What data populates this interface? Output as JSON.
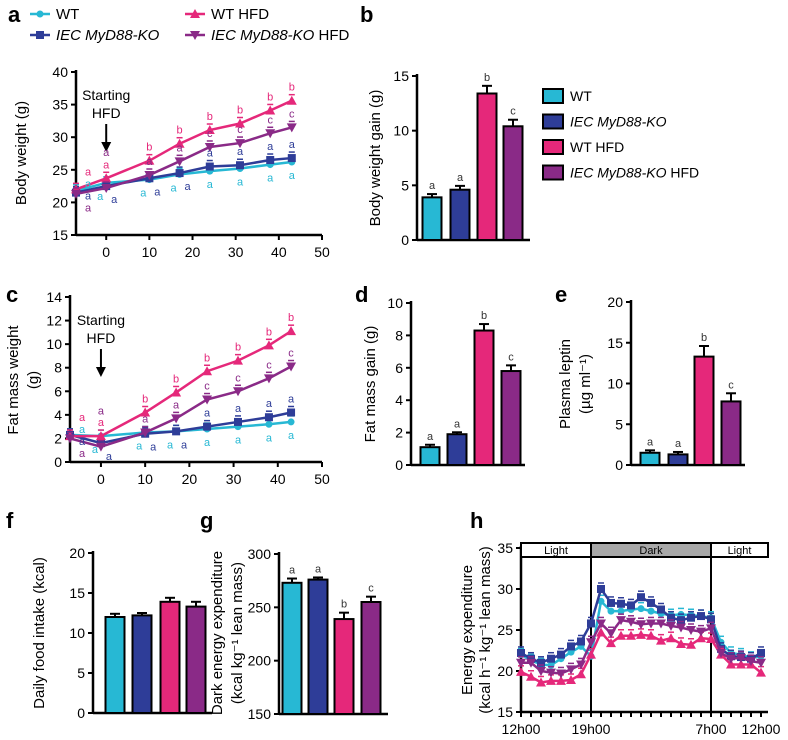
{
  "colors": {
    "WT": "#27B8D4",
    "KO": "#2E3D98",
    "WT_HFD": "#E5287A",
    "KO_HFD": "#8A2A87"
  },
  "groups": [
    {
      "key": "WT",
      "italic": "",
      "plain": "WT",
      "marker": "circle"
    },
    {
      "key": "KO",
      "italic": "IEC MyD88-KO",
      "plain": "",
      "marker": "square"
    },
    {
      "key": "WT_HFD",
      "italic": "",
      "plain": "WT HFD",
      "marker": "triangle-up"
    },
    {
      "key": "KO_HFD",
      "italic": "IEC MyD88-KO",
      "plain": " HFD",
      "marker": "triangle-down"
    }
  ],
  "chart_data": [
    {
      "id": "a",
      "panel_label": "a",
      "type": "line",
      "ylabel": [
        "Body weight (g)"
      ],
      "ylim": [
        15,
        40
      ],
      "yticks": [
        15,
        20,
        25,
        30,
        35,
        40
      ],
      "xlim": [
        -7,
        50
      ],
      "xticks": [
        0,
        10,
        20,
        30,
        40,
        50
      ],
      "annotation": [
        "Starting",
        "HFD"
      ],
      "x": [
        -7,
        0,
        10,
        17,
        24,
        31,
        38,
        43
      ],
      "series": [
        {
          "key": "WT",
          "values": [
            21.8,
            23.0,
            23.5,
            24.3,
            24.8,
            25.2,
            25.8,
            26.2
          ],
          "letters": [
            "a",
            "a",
            "a",
            "a",
            "a",
            "a",
            "a",
            "a"
          ]
        },
        {
          "key": "KO",
          "values": [
            21.5,
            22.5,
            23.7,
            24.5,
            25.5,
            25.7,
            26.5,
            26.8
          ],
          "letters": [
            "a",
            "a",
            "a",
            "a",
            "a",
            "a",
            "a",
            "a"
          ]
        },
        {
          "key": "WT_HFD",
          "values": [
            22.0,
            23.7,
            26.4,
            29.0,
            31.1,
            32.1,
            34.1,
            35.6
          ],
          "letters": [
            "a",
            "a",
            "b",
            "b",
            "b",
            "b",
            "b",
            "b"
          ]
        },
        {
          "key": "KO_HFD",
          "values": [
            21.3,
            22.2,
            24.2,
            26.3,
            28.5,
            29.1,
            30.6,
            31.5
          ],
          "letters": [
            "a",
            "a",
            "a",
            "a",
            "c",
            "c",
            "c",
            "c"
          ]
        }
      ]
    },
    {
      "id": "b",
      "panel_label": "b",
      "type": "bar",
      "ylabel": [
        "Body weight gain (g)"
      ],
      "ylim": [
        0,
        15
      ],
      "yticks": [
        0,
        5,
        10,
        15
      ],
      "values": [
        3.9,
        4.6,
        13.4,
        10.4
      ],
      "errors": [
        0.3,
        0.35,
        0.7,
        0.6
      ],
      "letters": [
        "a",
        "a",
        "b",
        "c"
      ],
      "legend": true
    },
    {
      "id": "c",
      "panel_label": "c",
      "type": "line",
      "ylabel": [
        "Fat mass weight",
        "(g)"
      ],
      "ylim": [
        0,
        14
      ],
      "yticks": [
        0,
        2,
        4,
        6,
        8,
        10,
        12,
        14
      ],
      "xlim": [
        -7,
        50
      ],
      "xticks": [
        0,
        10,
        20,
        30,
        40,
        50
      ],
      "annotation": [
        "Starting",
        "HFD"
      ],
      "x": [
        -7,
        0,
        10,
        17,
        24,
        31,
        38,
        43
      ],
      "series": [
        {
          "key": "WT",
          "values": [
            2.3,
            2.2,
            2.5,
            2.6,
            2.8,
            3.0,
            3.2,
            3.4
          ],
          "letters": [
            "a",
            "a",
            "a",
            "a",
            "a",
            "a",
            "a",
            "a"
          ]
        },
        {
          "key": "KO",
          "values": [
            2.3,
            1.6,
            2.4,
            2.6,
            3.0,
            3.4,
            3.8,
            4.2
          ],
          "letters": [
            "a",
            "a",
            "a",
            "a",
            "a",
            "a",
            "a",
            "a"
          ]
        },
        {
          "key": "WT_HFD",
          "values": [
            2.2,
            2.2,
            4.2,
            5.9,
            7.7,
            8.6,
            9.9,
            11.1
          ],
          "letters": [
            "a",
            "a",
            "b",
            "b",
            "b",
            "b",
            "b",
            "b"
          ]
        },
        {
          "key": "KO_HFD",
          "values": [
            2.0,
            1.3,
            2.5,
            3.7,
            5.3,
            6.0,
            7.1,
            8.1
          ],
          "letters": [
            "a",
            "a",
            "a",
            "a",
            "c",
            "c",
            "c",
            "c"
          ]
        }
      ]
    },
    {
      "id": "d",
      "panel_label": "d",
      "type": "bar",
      "ylabel": [
        "Fat mass gain (g)"
      ],
      "ylim": [
        0,
        10
      ],
      "yticks": [
        0,
        2,
        4,
        6,
        8,
        10
      ],
      "values": [
        1.1,
        1.9,
        8.3,
        5.8
      ],
      "errors": [
        0.15,
        0.12,
        0.4,
        0.35
      ],
      "letters": [
        "a",
        "a",
        "b",
        "c"
      ]
    },
    {
      "id": "e",
      "panel_label": "e",
      "type": "bar",
      "ylabel": [
        "Plasma leptin",
        "(µg ml⁻¹)"
      ],
      "ylim": [
        0,
        20
      ],
      "yticks": [
        0,
        5,
        10,
        15,
        20
      ],
      "values": [
        1.5,
        1.3,
        13.3,
        7.8
      ],
      "errors": [
        0.3,
        0.3,
        1.3,
        1.0
      ],
      "letters": [
        "a",
        "a",
        "b",
        "c"
      ]
    },
    {
      "id": "f",
      "panel_label": "f",
      "type": "bar",
      "ylabel": [
        "Daily food intake (kcal)"
      ],
      "ylim": [
        0,
        20
      ],
      "yticks": [
        0,
        5,
        10,
        15,
        20
      ],
      "values": [
        12.0,
        12.2,
        13.9,
        13.3
      ],
      "errors": [
        0.4,
        0.3,
        0.5,
        0.6
      ],
      "letters": [
        "",
        "",
        "",
        ""
      ]
    },
    {
      "id": "g",
      "panel_label": "g",
      "type": "bar",
      "ylabel": [
        "Dark energy expenditure",
        "(kcal kg⁻¹ lean mass)"
      ],
      "ylim": [
        150,
        300
      ],
      "yticks": [
        150,
        200,
        250,
        300
      ],
      "values": [
        273,
        276,
        239,
        255
      ],
      "errors": [
        4,
        2,
        6,
        5
      ],
      "letters": [
        "a",
        "a",
        "b",
        "c"
      ]
    },
    {
      "id": "h",
      "panel_label": "h",
      "type": "line",
      "ylabel": [
        "Energy expenditure",
        "(kcal h⁻¹ kg⁻¹ lean mass)"
      ],
      "ylim": [
        15,
        35
      ],
      "yticks": [
        15,
        20,
        25,
        30,
        35
      ],
      "xlim": [
        0,
        24
      ],
      "xticklabels": [
        {
          "x": 0,
          "label": "12h00"
        },
        {
          "x": 7,
          "label": "19h00"
        },
        {
          "x": 19,
          "label": "7h00"
        },
        {
          "x": 24,
          "label": "12h00"
        }
      ],
      "bands": [
        {
          "from": 0,
          "to": 7,
          "label": "Light",
          "fill": "#FFFFFF"
        },
        {
          "from": 7,
          "to": 19,
          "label": "Dark",
          "fill": "#A8A8A8"
        },
        {
          "from": 19,
          "to": 24,
          "label": "Light",
          "fill": "#FFFFFF"
        }
      ],
      "x": [
        0,
        1,
        2,
        3,
        4,
        5,
        6,
        7,
        8,
        9,
        10,
        11,
        12,
        13,
        14,
        15,
        16,
        17,
        18,
        19,
        20,
        21,
        22,
        23,
        24
      ],
      "series": [
        {
          "key": "WT",
          "values": [
            22.0,
            21.3,
            20.8,
            20.7,
            21.5,
            22.3,
            23.0,
            21.8,
            28.5,
            27.3,
            27.3,
            27.5,
            27.6,
            27.3,
            27.0,
            26.8,
            26.9,
            26.8,
            26.7,
            26.5,
            23.5,
            22.2,
            22.0,
            21.6,
            21.8
          ]
        },
        {
          "key": "KO",
          "values": [
            22.2,
            21.5,
            21.0,
            21.5,
            22.0,
            23.0,
            23.6,
            25.8,
            30.0,
            28.3,
            28.2,
            28.0,
            29.0,
            28.3,
            27.5,
            26.5,
            26.2,
            26.5,
            26.7,
            26.3,
            22.7,
            21.8,
            21.7,
            21.5,
            22.2
          ]
        },
        {
          "key": "WT_HFD",
          "values": [
            19.9,
            19.3,
            18.6,
            18.8,
            18.8,
            18.9,
            19.6,
            22.0,
            24.7,
            23.4,
            24.3,
            24.3,
            24.4,
            24.3,
            23.7,
            24.0,
            23.3,
            23.2,
            24.0,
            23.9,
            22.0,
            20.8,
            20.8,
            20.8,
            19.8
          ]
        },
        {
          "key": "KO_HFD",
          "values": [
            21.0,
            21.0,
            20.0,
            19.8,
            19.7,
            20.2,
            20.8,
            23.5,
            25.8,
            24.6,
            26.2,
            26.0,
            25.7,
            25.8,
            25.8,
            25.5,
            25.3,
            25.0,
            24.8,
            25.2,
            22.2,
            21.5,
            21.6,
            21.2,
            21.0
          ]
        }
      ]
    }
  ]
}
